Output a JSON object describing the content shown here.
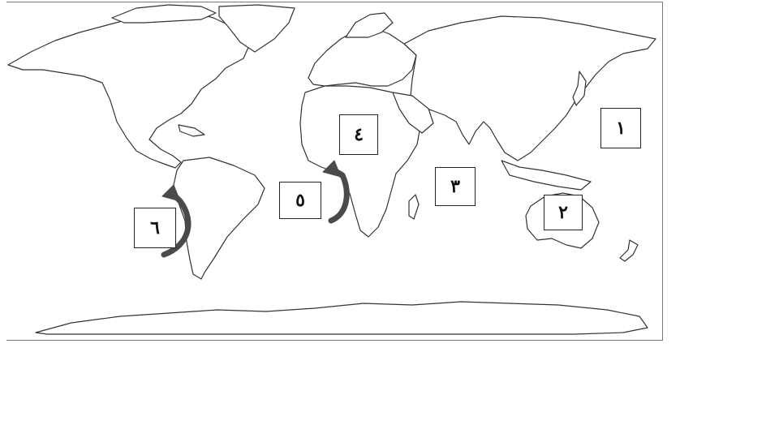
{
  "map": {
    "labels": {
      "box_1": "١",
      "box_2": "٢",
      "box_3": "٣",
      "box_4": "٤",
      "box_5": "٥",
      "box_6": "٦"
    },
    "colors": {
      "land_fill": "#ffffff",
      "outline": "#333333",
      "arrow": "#4a4a4a"
    },
    "icons": [
      "curved-arrow-icon",
      "curved-arrow-icon"
    ]
  }
}
